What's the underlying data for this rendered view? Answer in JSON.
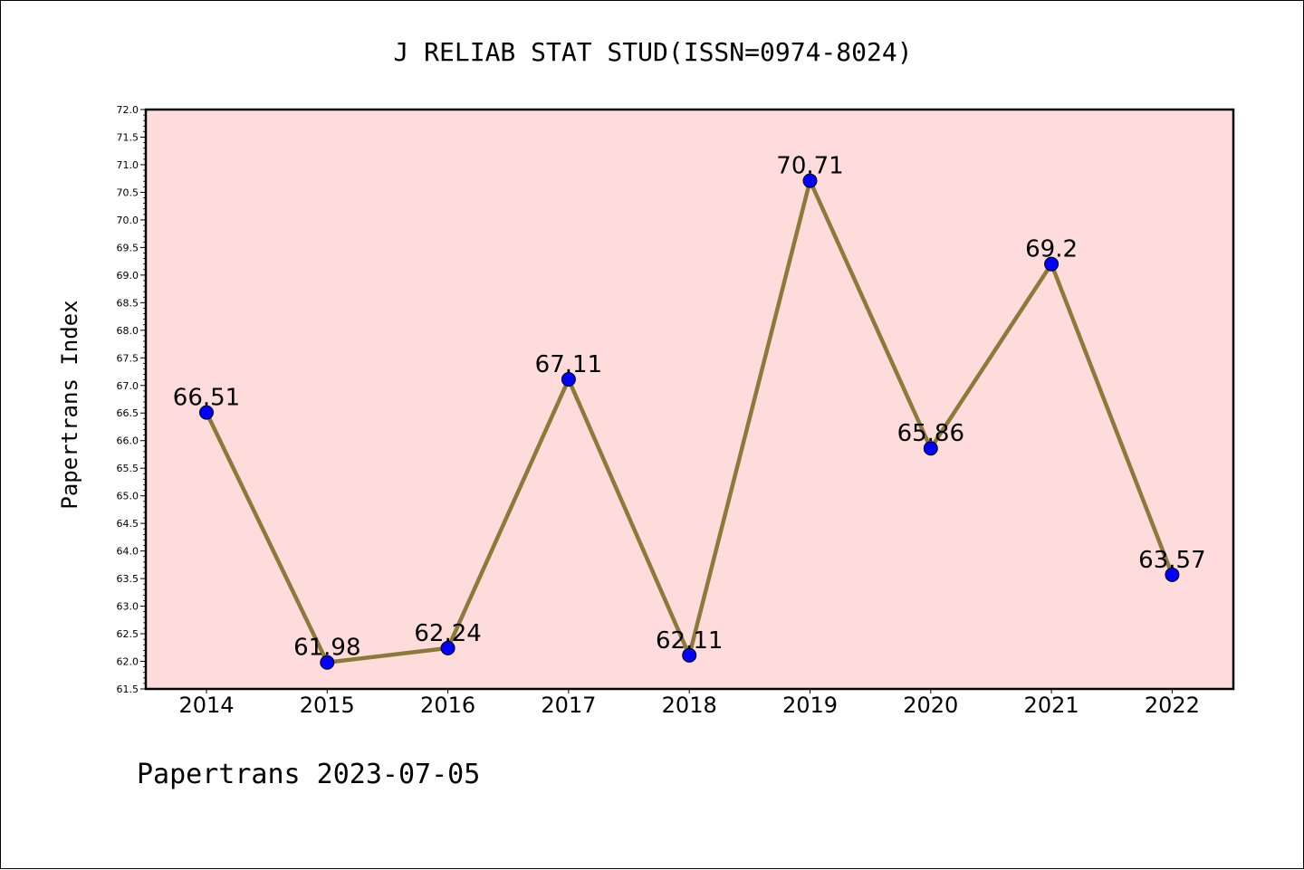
{
  "chart_data": {
    "type": "line",
    "title": "J RELIAB STAT STUD(ISSN=0974-8024)",
    "xlabel": "",
    "ylabel": "Papertrans Index",
    "categories": [
      "2014",
      "2015",
      "2016",
      "2017",
      "2018",
      "2019",
      "2020",
      "2021",
      "2022"
    ],
    "series": [
      {
        "values": [
          66.51,
          61.98,
          62.24,
          67.11,
          62.11,
          70.71,
          65.86,
          69.2,
          63.57
        ],
        "data_labels": [
          "66.51",
          "61.98",
          "62.24",
          "67.11",
          "62.11",
          "70.71",
          "65.86",
          "69.2",
          "63.57"
        ],
        "line_color": "#8b7a3a",
        "marker_color": "#0000ff"
      }
    ],
    "ylim": [
      61.5,
      72.0
    ],
    "yticks": [
      "61.5",
      "62.0",
      "62.5",
      "63.0",
      "63.5",
      "64.0",
      "64.5",
      "65.0",
      "65.5",
      "66.0",
      "66.5",
      "67.0",
      "67.5",
      "68.0",
      "68.5",
      "69.0",
      "69.5",
      "70.0",
      "70.5",
      "71.0",
      "71.5",
      "72.0"
    ],
    "grid": false,
    "plot_background": "#ffdcdc"
  },
  "footer": "Papertrans 2023-07-05"
}
